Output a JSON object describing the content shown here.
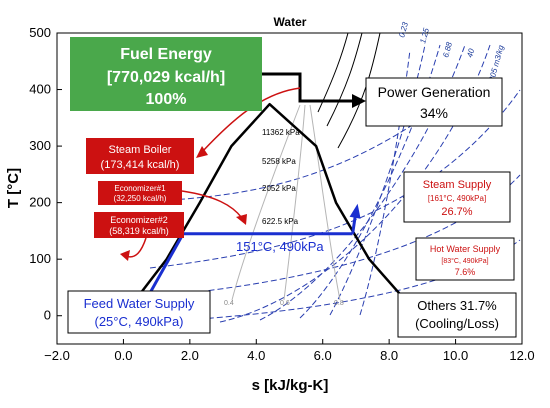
{
  "chart_data": {
    "type": "line",
    "title": "Water",
    "xlabel": "s [kJ/kg-K]",
    "ylabel": "T [°C]",
    "xlim": [
      -2.0,
      12.0
    ],
    "ylim": [
      -50,
      500
    ],
    "x_ticks": [
      "−2.0",
      "0.0",
      "2.0",
      "4.0",
      "6.0",
      "8.0",
      "10.0",
      "12.0"
    ],
    "y_ticks": [
      "0",
      "100",
      "200",
      "300",
      "400",
      "500"
    ],
    "grid": false,
    "isobars": [
      "11362 kPa",
      "5258 kPa",
      "2052 kPa",
      "622.5 kPa"
    ],
    "specific_volumes": [
      "0.23",
      "1.25",
      "6.88",
      "40",
      "205 m3/kg"
    ],
    "qualities": [
      "0.4",
      "0.6",
      "0.8"
    ],
    "series": [
      {
        "name": "Saturation dome",
        "points": [
          [
            0,
            0
          ],
          [
            1.3,
            100
          ],
          [
            2.3,
            200
          ],
          [
            3.25,
            300
          ],
          [
            4.4,
            374
          ],
          [
            5.8,
            300
          ],
          [
            6.4,
            200
          ],
          [
            7.4,
            100
          ],
          [
            8.9,
            0
          ]
        ]
      },
      {
        "name": "Feed water heating",
        "points": [
          [
            0.7,
            30
          ],
          [
            1.8,
            145
          ]
        ]
      },
      {
        "name": "Steam generation",
        "points": [
          [
            1.8,
            145
          ],
          [
            6.9,
            145
          ]
        ]
      }
    ],
    "annotations": {
      "fuel": {
        "title": "Fuel Energy",
        "value": "[770,029 kcal/h]",
        "pct": "100%"
      },
      "power": {
        "title": "Power Generation",
        "pct": "34%"
      },
      "steam_boiler": {
        "title": "Steam Boiler",
        "value": "(173,414 kcal/h)"
      },
      "econ1": {
        "title": "Economizer#1",
        "value": "(32,250 kcal/h)"
      },
      "econ2": {
        "title": "Economizer#2",
        "value": "(58,319 kcal/h)"
      },
      "steam_supply": {
        "title": "Steam Supply",
        "cond": "[161°C, 490kPa]",
        "pct": "26.7%"
      },
      "hot_water": {
        "title": "Hot Water Supply",
        "cond": "[83°C, 490kPa]",
        "pct": "7.6%"
      },
      "feed": {
        "title": "Feed Water Supply",
        "cond": "(25°C, 490kPa)"
      },
      "state_label": "151°C, 490kPa",
      "others": {
        "title": "Others 31.7%",
        "note": "(Cooling/Loss)"
      }
    }
  }
}
